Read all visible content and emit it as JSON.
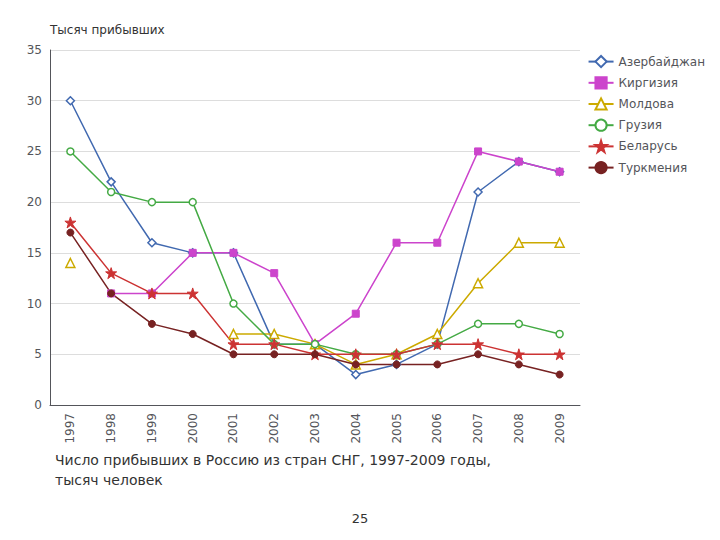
{
  "chart_data": {
    "type": "line",
    "title": "Число прибывших в Россию из стран СНГ, 1997-2009 годы,",
    "subtitle": "тысяч человек",
    "annotations": [
      "25"
    ],
    "ylabel": "Тысяч прибывших",
    "categories": [
      "1997",
      "1998",
      "1999",
      "2000",
      "2001",
      "2002",
      "2003",
      "2004",
      "2005",
      "2006",
      "2007",
      "2008",
      "2009"
    ],
    "series": [
      {
        "name": "Азербайджан",
        "values": [
          30,
          22,
          16,
          15,
          15,
          6,
          6,
          3,
          4,
          6,
          21,
          24,
          23
        ],
        "color": "#4169B0",
        "marker": "diamond-open"
      },
      {
        "name": "Киргизия",
        "values": [
          null,
          11,
          11,
          15,
          15,
          13,
          6,
          9,
          16,
          16,
          25,
          24,
          23
        ],
        "color": "#CC44CC",
        "marker": "square"
      },
      {
        "name": "Молдова",
        "values": [
          14,
          null,
          null,
          null,
          7,
          7,
          6,
          4,
          5,
          7,
          12,
          16,
          16
        ],
        "color": "#CCAA00",
        "marker": "triangle-open"
      },
      {
        "name": "Грузия",
        "values": [
          25,
          21,
          20,
          20,
          10,
          6,
          6,
          5,
          5,
          6,
          8,
          8,
          7
        ],
        "color": "#44AA44",
        "marker": "circle-open"
      },
      {
        "name": "Беларусь",
        "values": [
          18,
          13,
          11,
          11,
          6,
          6,
          5,
          5,
          5,
          6,
          6,
          5,
          5
        ],
        "color": "#CC3333",
        "marker": "star"
      },
      {
        "name": "Туркмения",
        "values": [
          17,
          11,
          8,
          7,
          5,
          5,
          5,
          4,
          4,
          4,
          5,
          4,
          3
        ],
        "color": "#772222",
        "marker": "circle"
      }
    ],
    "ylim": [
      0,
      35
    ],
    "yticks": [
      0,
      5,
      10,
      15,
      20,
      25,
      30,
      35
    ],
    "grid": true,
    "legend": "upper right"
  }
}
